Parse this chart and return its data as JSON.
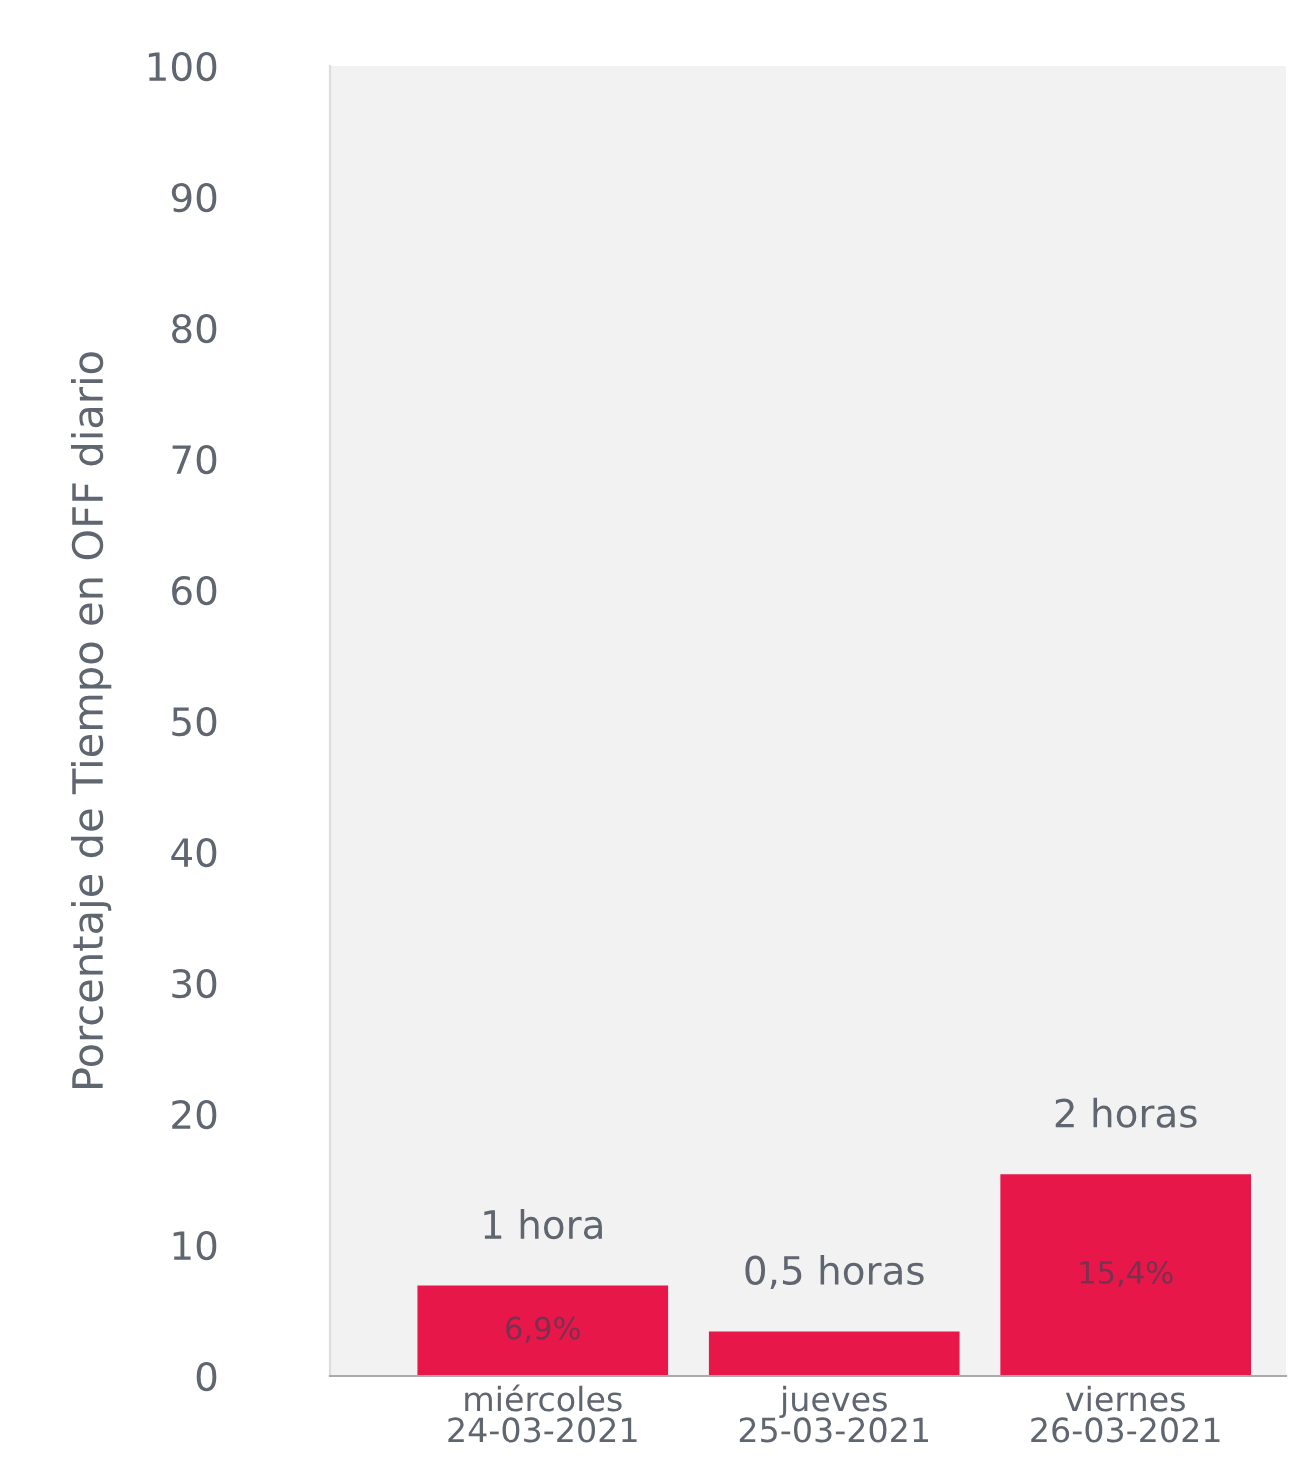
{
  "chart_data": {
    "type": "bar",
    "ylabel": "Porcentaje de Tiempo en OFF diario",
    "categories": [
      "miércoles\n24-03-2021",
      "jueves\n25-03-2021",
      "viernes\n26-03-2021"
    ],
    "values": [
      6.9,
      3.4,
      15.4
    ],
    "color": "#e8174a",
    "value_labels": [
      "6,9%",
      null,
      "15,4%"
    ],
    "annotations": [
      {
        "text": "1 hora",
        "x": "miércoles\n24-03-2021",
        "y": 6.9
      },
      {
        "text": "0,5 horas",
        "x": "jueves\n25-03-2021",
        "y": 3.4
      },
      {
        "text": "2 horas",
        "x": "viernes\n26-03-2021",
        "y": 15.4
      }
    ],
    "ylim": [
      0,
      100
    ],
    "yticks": [
      0,
      10,
      20,
      30,
      40,
      50,
      60,
      70,
      80,
      90,
      100
    ],
    "grid": false,
    "legend": false
  }
}
